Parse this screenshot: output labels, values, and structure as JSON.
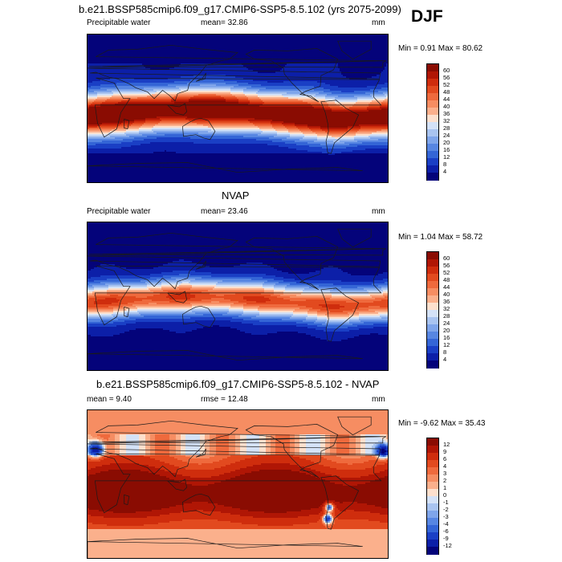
{
  "header": {
    "title": "b.e21.BSSP585cmip6.f09_g17.CMIP6-SSP5-8.5.102 (yrs 2075-2099)",
    "season": "DJF"
  },
  "panels": [
    {
      "title": "",
      "left_label": "Precipitable water",
      "stat_label": "mean=  32.86",
      "units": "mm",
      "minmax": "Min =   0.91 Max =  80.62",
      "field": "model",
      "levels": [
        "60",
        "56",
        "52",
        "48",
        "44",
        "40",
        "36",
        "32",
        "28",
        "24",
        "20",
        "16",
        "12",
        "8",
        "4"
      ],
      "colors": [
        "#8a0c02",
        "#b01605",
        "#cf2d0d",
        "#e24a1f",
        "#ef6a3d",
        "#f68d62",
        "#fbb08c",
        "#fde0cd",
        "#d4e2f7",
        "#a9c4f0",
        "#7fa5ea",
        "#5786e2",
        "#3465d6",
        "#1a3fc5",
        "#0c1fa8",
        "#04037a"
      ]
    },
    {
      "title": "NVAP",
      "left_label": "Precipitable water",
      "stat_label": "mean=  23.46",
      "units": "mm",
      "minmax": "Min =   1.04 Max =  58.72",
      "field": "obs",
      "levels": [
        "60",
        "56",
        "52",
        "48",
        "44",
        "40",
        "36",
        "32",
        "28",
        "24",
        "20",
        "16",
        "12",
        "8",
        "4"
      ],
      "colors": [
        "#8a0c02",
        "#b01605",
        "#cf2d0d",
        "#e24a1f",
        "#ef6a3d",
        "#f68d62",
        "#fbb08c",
        "#fde0cd",
        "#d4e2f7",
        "#a9c4f0",
        "#7fa5ea",
        "#5786e2",
        "#3465d6",
        "#1a3fc5",
        "#0c1fa8",
        "#04037a"
      ]
    },
    {
      "title": "b.e21.BSSP585cmip6.f09_g17.CMIP6-SSP5-8.5.102 - NVAP",
      "left_label": "mean =    9.40",
      "stat_label": "rmse =  12.48",
      "units": "mm",
      "minmax": "Min =  -9.62 Max =  35.43",
      "field": "diff",
      "levels": [
        "12",
        "9",
        "6",
        "4",
        "3",
        "2",
        "1",
        "0",
        "-1",
        "-2",
        "-3",
        "-4",
        "-6",
        "-9",
        "-12"
      ],
      "colors": [
        "#8a0c02",
        "#b01605",
        "#cf2d0d",
        "#e24a1f",
        "#ef6a3d",
        "#f68d62",
        "#fbb08c",
        "#fde0cd",
        "#d4e2f7",
        "#a9c4f0",
        "#7fa5ea",
        "#5786e2",
        "#3465d6",
        "#1a3fc5",
        "#0c1fa8",
        "#04037a"
      ]
    }
  ]
}
